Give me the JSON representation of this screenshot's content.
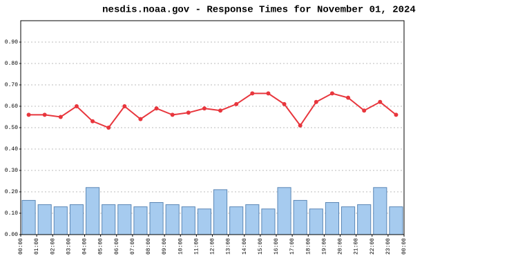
{
  "chart_data": {
    "type": "bar-line",
    "title": "nesdis.noaa.gov - Response Times for November 01, 2024",
    "xticks": [
      "00:00",
      "01:00",
      "02:00",
      "03:00",
      "04:00",
      "05:00",
      "06:00",
      "07:00",
      "08:00",
      "09:00",
      "10:00",
      "11:00",
      "12:00",
      "13:00",
      "14:00",
      "15:00",
      "16:00",
      "17:00",
      "18:00",
      "19:00",
      "20:00",
      "21:00",
      "22:00",
      "23:00",
      "00:00"
    ],
    "series": [
      {
        "type": "bar",
        "color": "#a6cbef",
        "values": [
          0.16,
          0.14,
          0.13,
          0.14,
          0.22,
          0.14,
          0.14,
          0.13,
          0.15,
          0.14,
          0.13,
          0.12,
          0.21,
          0.13,
          0.14,
          0.12,
          0.22,
          0.16,
          0.12,
          0.15,
          0.13,
          0.14,
          0.22,
          0.13
        ]
      },
      {
        "type": "line",
        "color": "#e8363d",
        "values": [
          0.56,
          0.56,
          0.55,
          0.6,
          0.53,
          0.5,
          0.6,
          0.54,
          0.59,
          0.56,
          0.57,
          0.59,
          0.58,
          0.61,
          0.66,
          0.66,
          0.61,
          0.51,
          0.62,
          0.66,
          0.64,
          0.58,
          0.62,
          0.56
        ]
      }
    ],
    "ylim": [
      0,
      1.0
    ],
    "yticks": [
      {
        "value": 0,
        "label": "0.00"
      },
      {
        "value": 0.1,
        "label": "0.10"
      },
      {
        "value": 0.2,
        "label": "0.20"
      },
      {
        "value": 0.3,
        "label": "0.30"
      },
      {
        "value": 0.4,
        "label": "0.40"
      },
      {
        "value": 0.5,
        "label": "0.50"
      },
      {
        "value": 0.6,
        "label": "0.60"
      },
      {
        "value": 0.7,
        "label": "0.70"
      },
      {
        "value": 0.8,
        "label": "0.80"
      },
      {
        "value": 0.9,
        "label": "0.90"
      }
    ],
    "grid": true
  }
}
